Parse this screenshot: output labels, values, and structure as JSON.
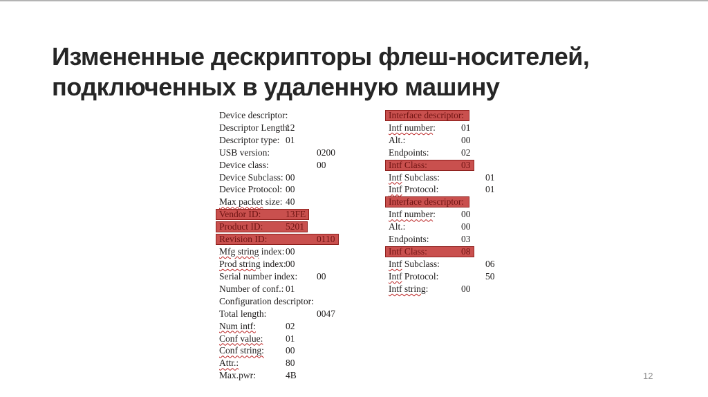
{
  "title": {
    "text": "Измененные дескрипторы флеш-носителей,\nподключенных в удаленную машину"
  },
  "page_number": "12",
  "colors": {
    "title_color": "#262626",
    "body_text": "#1e1c1c",
    "highlight_bg": "#c9504e",
    "highlight_border": "#8f1f1c",
    "highlight_text": "#6f1413",
    "wavy": "#bb2222",
    "top_line": "#b3b3b3",
    "page_num_color": "#909090"
  },
  "left_column": {
    "rows": [
      {
        "label": [
          {
            "t": "Device descriptor:",
            "w": false
          }
        ],
        "value": "",
        "tab": "t0",
        "hl": false
      },
      {
        "label": [
          {
            "t": "Descriptor Length:",
            "w": false
          }
        ],
        "value": "12",
        "tab": "t1",
        "hl": false
      },
      {
        "label": [
          {
            "t": "Descriptor type:",
            "w": false
          }
        ],
        "value": "01",
        "tab": "t1",
        "hl": false
      },
      {
        "label": [
          {
            "t": "USB version:",
            "w": false
          }
        ],
        "value": "0200",
        "tab": "t2",
        "hl": false
      },
      {
        "label": [
          {
            "t": "Device class:",
            "w": false
          }
        ],
        "value": "00",
        "tab": "t2",
        "hl": false
      },
      {
        "label": [
          {
            "t": "Device Subclass:",
            "w": false
          }
        ],
        "value": "00",
        "tab": "t1",
        "hl": false
      },
      {
        "label": [
          {
            "t": "Device Protocol:",
            "w": false
          }
        ],
        "value": "00",
        "tab": "t1",
        "hl": false
      },
      {
        "label": [
          {
            "t": "Max packet",
            "w": true
          },
          {
            "t": " size:",
            "w": false
          }
        ],
        "value": "40",
        "tab": "t1",
        "hl": false
      },
      {
        "label": [
          {
            "t": "Vendor ID:",
            "w": false
          }
        ],
        "value": "13FE",
        "tab": "t1",
        "hl": true
      },
      {
        "label": [
          {
            "t": "Product ID:",
            "w": false
          }
        ],
        "value": "5201",
        "tab": "t1",
        "hl": true
      },
      {
        "label": [
          {
            "t": "Revision ID:",
            "w": false
          }
        ],
        "value": "0110",
        "tab": "t2",
        "hl": true
      },
      {
        "label": [
          {
            "t": "Mfg string",
            "w": true
          },
          {
            "t": " index:",
            "w": false
          }
        ],
        "value": "00",
        "tab": "t1",
        "hl": false
      },
      {
        "label": [
          {
            "t": "Prod string",
            "w": true
          },
          {
            "t": " index:",
            "w": false
          }
        ],
        "value": "00",
        "tab": "t1",
        "hl": false
      },
      {
        "label": [
          {
            "t": "Serial number index:",
            "w": false
          }
        ],
        "value": "00",
        "tab": "t2",
        "hl": false
      },
      {
        "label": [
          {
            "t": "Number of conf.:",
            "w": false
          }
        ],
        "value": "01",
        "tab": "t1",
        "hl": false
      },
      {
        "label": [
          {
            "t": "Configuration descriptor:",
            "w": false
          }
        ],
        "value": "",
        "tab": "t0",
        "hl": false
      },
      {
        "label": [
          {
            "t": "Total length:",
            "w": false
          }
        ],
        "value": "0047",
        "tab": "t2",
        "hl": false
      },
      {
        "label": [
          {
            "t": "Num intf:",
            "w": true
          }
        ],
        "value": "02",
        "tab": "t1",
        "hl": false
      },
      {
        "label": [
          {
            "t": "Conf value:",
            "w": true
          }
        ],
        "value": "01",
        "tab": "t1",
        "hl": false
      },
      {
        "label": [
          {
            "t": "Conf string:",
            "w": true
          }
        ],
        "value": "00",
        "tab": "t1",
        "hl": false
      },
      {
        "label": [
          {
            "t": "Attr.:",
            "w": true
          }
        ],
        "value": "80",
        "tab": "t1",
        "hl": false
      },
      {
        "label": [
          {
            "t": "Max.pwr:",
            "w": false
          }
        ],
        "value": "4B",
        "tab": "t1",
        "hl": false
      }
    ]
  },
  "right_column": {
    "rows": [
      {
        "label": [
          {
            "t": "Interface descriptor:",
            "w": false
          }
        ],
        "value": "",
        "tab": "t0",
        "hl": true
      },
      {
        "label": [
          {
            "t": "Intf number",
            "w": true
          },
          {
            "t": ":",
            "w": false
          }
        ],
        "value": "01",
        "tab": "t1",
        "hl": false
      },
      {
        "label": [
          {
            "t": "Alt.:",
            "w": false
          }
        ],
        "value": "00",
        "tab": "t1",
        "hl": false
      },
      {
        "label": [
          {
            "t": "Endpoints:",
            "w": false
          }
        ],
        "value": "02",
        "tab": "t1",
        "hl": false
      },
      {
        "label": [
          {
            "t": "Intf Class:",
            "w": false
          }
        ],
        "value": "03",
        "tab": "t1",
        "hl": true
      },
      {
        "label": [
          {
            "t": "Intf",
            "w": true
          },
          {
            "t": " Subclass:",
            "w": false
          }
        ],
        "value": "01",
        "tab": "t2",
        "hl": false
      },
      {
        "label": [
          {
            "t": "Intf",
            "w": true
          },
          {
            "t": " Protocol:",
            "w": false
          }
        ],
        "value": "01",
        "tab": "t2",
        "hl": false
      },
      {
        "label": [
          {
            "t": "Interface descriptor:",
            "w": false
          }
        ],
        "value": "",
        "tab": "t0",
        "hl": true
      },
      {
        "label": [
          {
            "t": "Intf number",
            "w": true
          },
          {
            "t": ":",
            "w": false
          }
        ],
        "value": "00",
        "tab": "t1",
        "hl": false
      },
      {
        "label": [
          {
            "t": "Alt.:",
            "w": false
          }
        ],
        "value": "00",
        "tab": "t1",
        "hl": false
      },
      {
        "label": [
          {
            "t": "Endpoints:",
            "w": false
          }
        ],
        "value": "03",
        "tab": "t1",
        "hl": false
      },
      {
        "label": [
          {
            "t": "Intf Class:",
            "w": false
          }
        ],
        "value": "08",
        "tab": "t1",
        "hl": true
      },
      {
        "label": [
          {
            "t": "Intf",
            "w": true
          },
          {
            "t": " Subclass:",
            "w": false
          }
        ],
        "value": "06",
        "tab": "t2",
        "hl": false
      },
      {
        "label": [
          {
            "t": "Intf",
            "w": true
          },
          {
            "t": " Protocol:",
            "w": false
          }
        ],
        "value": "50",
        "tab": "t2",
        "hl": false
      },
      {
        "label": [
          {
            "t": "Intf string",
            "w": true
          },
          {
            "t": ":",
            "w": false
          }
        ],
        "value": "00",
        "tab": "t1",
        "hl": false
      }
    ]
  }
}
